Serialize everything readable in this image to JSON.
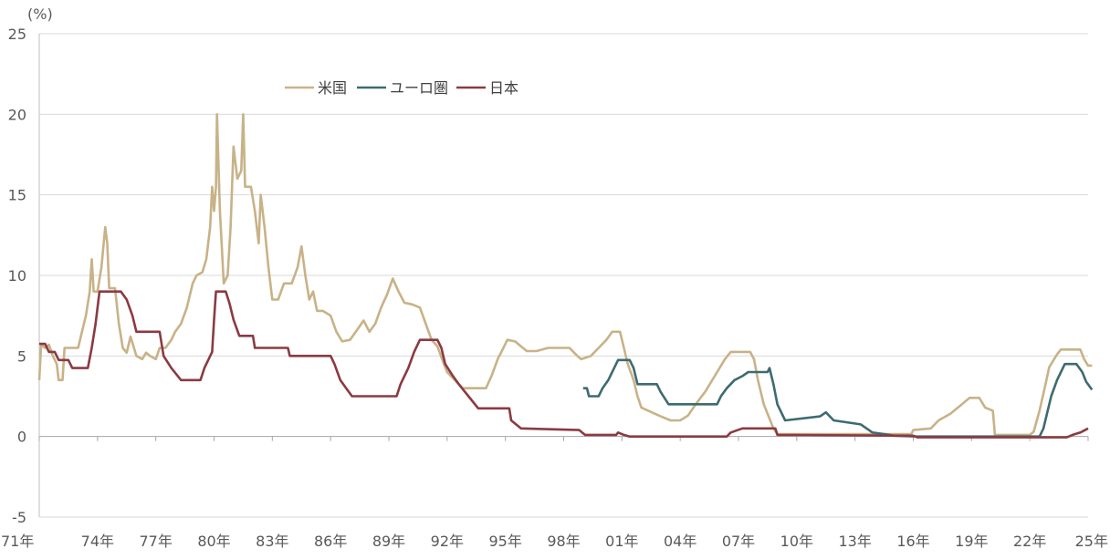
{
  "chart_data": {
    "type": "line",
    "ylabel": "(%)",
    "xlabel": "",
    "ylim": [
      -5,
      25
    ],
    "yticks": [
      -5,
      0,
      5,
      10,
      15,
      20,
      25
    ],
    "xlim": [
      1971,
      2025
    ],
    "xtick_labels": [
      "71年",
      "74年",
      "77年",
      "80年",
      "83年",
      "86年",
      "89年",
      "92年",
      "95年",
      "98年",
      "01年",
      "04年",
      "07年",
      "10年",
      "13年",
      "16年",
      "19年",
      "22年",
      "25年"
    ],
    "grid": "horizontal",
    "legend_position": "top-left",
    "series": [
      {
        "name": "米国",
        "color": "#C8B287",
        "points": [
          [
            1971.0,
            3.5
          ],
          [
            1971.1,
            5.7
          ],
          [
            1971.3,
            5.5
          ],
          [
            1971.5,
            5.7
          ],
          [
            1971.7,
            5.0
          ],
          [
            1971.9,
            4.5
          ],
          [
            1972.0,
            3.5
          ],
          [
            1972.2,
            3.5
          ],
          [
            1972.3,
            5.5
          ],
          [
            1972.7,
            5.5
          ],
          [
            1973.0,
            5.5
          ],
          [
            1973.2,
            6.5
          ],
          [
            1973.4,
            7.5
          ],
          [
            1973.6,
            9.0
          ],
          [
            1973.7,
            11.0
          ],
          [
            1973.8,
            9.0
          ],
          [
            1974.0,
            9.0
          ],
          [
            1974.2,
            10.5
          ],
          [
            1974.4,
            13.0
          ],
          [
            1974.5,
            12.0
          ],
          [
            1974.6,
            9.2
          ],
          [
            1974.9,
            9.2
          ],
          [
            1975.1,
            7.0
          ],
          [
            1975.3,
            5.5
          ],
          [
            1975.5,
            5.2
          ],
          [
            1975.7,
            6.2
          ],
          [
            1976.0,
            5.0
          ],
          [
            1976.3,
            4.8
          ],
          [
            1976.5,
            5.2
          ],
          [
            1976.7,
            5.0
          ],
          [
            1977.0,
            4.8
          ],
          [
            1977.2,
            5.5
          ],
          [
            1977.5,
            5.5
          ],
          [
            1977.8,
            6.0
          ],
          [
            1978.0,
            6.5
          ],
          [
            1978.3,
            7.0
          ],
          [
            1978.6,
            8.0
          ],
          [
            1978.9,
            9.5
          ],
          [
            1979.1,
            10.0
          ],
          [
            1979.4,
            10.2
          ],
          [
            1979.6,
            11.0
          ],
          [
            1979.8,
            13.0
          ],
          [
            1979.9,
            15.5
          ],
          [
            1980.0,
            14.0
          ],
          [
            1980.1,
            15.5
          ],
          [
            1980.15,
            20.0
          ],
          [
            1980.3,
            14.0
          ],
          [
            1980.5,
            9.5
          ],
          [
            1980.7,
            10.0
          ],
          [
            1980.85,
            13.0
          ],
          [
            1981.0,
            18.0
          ],
          [
            1981.2,
            16.0
          ],
          [
            1981.4,
            16.5
          ],
          [
            1981.5,
            20.0
          ],
          [
            1981.6,
            15.5
          ],
          [
            1981.9,
            15.5
          ],
          [
            1982.1,
            14.0
          ],
          [
            1982.3,
            12.0
          ],
          [
            1982.4,
            15.0
          ],
          [
            1982.6,
            13.0
          ],
          [
            1982.8,
            10.5
          ],
          [
            1983.0,
            8.5
          ],
          [
            1983.3,
            8.5
          ],
          [
            1983.6,
            9.5
          ],
          [
            1984.0,
            9.5
          ],
          [
            1984.3,
            10.5
          ],
          [
            1984.5,
            11.8
          ],
          [
            1984.7,
            10.0
          ],
          [
            1984.9,
            8.5
          ],
          [
            1985.1,
            9.0
          ],
          [
            1985.3,
            7.8
          ],
          [
            1985.6,
            7.8
          ],
          [
            1986.0,
            7.5
          ],
          [
            1986.3,
            6.5
          ],
          [
            1986.6,
            5.9
          ],
          [
            1987.0,
            6.0
          ],
          [
            1987.3,
            6.5
          ],
          [
            1987.7,
            7.2
          ],
          [
            1988.0,
            6.5
          ],
          [
            1988.3,
            7.0
          ],
          [
            1988.6,
            8.0
          ],
          [
            1988.9,
            8.8
          ],
          [
            1989.2,
            9.8
          ],
          [
            1989.5,
            9.0
          ],
          [
            1989.8,
            8.3
          ],
          [
            1990.2,
            8.2
          ],
          [
            1990.6,
            8.0
          ],
          [
            1990.9,
            7.0
          ],
          [
            1991.2,
            6.0
          ],
          [
            1991.5,
            5.6
          ],
          [
            1991.8,
            4.6
          ],
          [
            1992.0,
            4.0
          ],
          [
            1992.4,
            3.5
          ],
          [
            1992.8,
            3.0
          ],
          [
            1993.5,
            3.0
          ],
          [
            1994.0,
            3.0
          ],
          [
            1994.3,
            3.8
          ],
          [
            1994.6,
            4.8
          ],
          [
            1994.9,
            5.5
          ],
          [
            1995.1,
            6.0
          ],
          [
            1995.5,
            5.9
          ],
          [
            1995.9,
            5.5
          ],
          [
            1996.1,
            5.3
          ],
          [
            1996.6,
            5.3
          ],
          [
            1997.2,
            5.5
          ],
          [
            1997.8,
            5.5
          ],
          [
            1998.3,
            5.5
          ],
          [
            1998.7,
            5.0
          ],
          [
            1998.9,
            4.8
          ],
          [
            1999.4,
            5.0
          ],
          [
            1999.8,
            5.5
          ],
          [
            2000.2,
            6.0
          ],
          [
            2000.5,
            6.5
          ],
          [
            2000.9,
            6.5
          ],
          [
            2001.1,
            5.5
          ],
          [
            2001.3,
            4.5
          ],
          [
            2001.6,
            3.5
          ],
          [
            2001.8,
            2.5
          ],
          [
            2002.0,
            1.8
          ],
          [
            2002.9,
            1.3
          ],
          [
            2003.5,
            1.0
          ],
          [
            2004.0,
            1.0
          ],
          [
            2004.4,
            1.3
          ],
          [
            2004.8,
            2.0
          ],
          [
            2005.3,
            2.8
          ],
          [
            2005.8,
            3.8
          ],
          [
            2006.3,
            4.8
          ],
          [
            2006.6,
            5.25
          ],
          [
            2007.6,
            5.25
          ],
          [
            2007.8,
            4.8
          ],
          [
            2008.0,
            3.5
          ],
          [
            2008.3,
            2.0
          ],
          [
            2008.8,
            0.5
          ],
          [
            2009.0,
            0.15
          ],
          [
            2015.9,
            0.15
          ],
          [
            2016.0,
            0.4
          ],
          [
            2016.9,
            0.5
          ],
          [
            2017.3,
            1.0
          ],
          [
            2017.9,
            1.4
          ],
          [
            2018.4,
            1.9
          ],
          [
            2018.9,
            2.4
          ],
          [
            2019.4,
            2.4
          ],
          [
            2019.7,
            1.8
          ],
          [
            2020.1,
            1.6
          ],
          [
            2020.2,
            0.1
          ],
          [
            2022.0,
            0.1
          ],
          [
            2022.2,
            0.3
          ],
          [
            2022.5,
            1.6
          ],
          [
            2022.8,
            3.2
          ],
          [
            2023.0,
            4.3
          ],
          [
            2023.4,
            5.1
          ],
          [
            2023.6,
            5.4
          ],
          [
            2024.6,
            5.4
          ],
          [
            2024.8,
            4.8
          ],
          [
            2025.0,
            4.4
          ],
          [
            2025.2,
            4.4
          ]
        ]
      },
      {
        "name": "ユーロ圏",
        "color": "#3D6B70",
        "points": [
          [
            1999.0,
            3.0
          ],
          [
            1999.2,
            3.0
          ],
          [
            1999.3,
            2.5
          ],
          [
            1999.8,
            2.5
          ],
          [
            2000.0,
            3.0
          ],
          [
            2000.3,
            3.5
          ],
          [
            2000.6,
            4.25
          ],
          [
            2000.8,
            4.75
          ],
          [
            2001.4,
            4.75
          ],
          [
            2001.6,
            4.25
          ],
          [
            2001.8,
            3.25
          ],
          [
            2002.8,
            3.25
          ],
          [
            2003.0,
            2.75
          ],
          [
            2003.4,
            2.0
          ],
          [
            2005.9,
            2.0
          ],
          [
            2006.1,
            2.5
          ],
          [
            2006.4,
            3.0
          ],
          [
            2006.8,
            3.5
          ],
          [
            2007.2,
            3.75
          ],
          [
            2007.5,
            4.0
          ],
          [
            2008.5,
            4.0
          ],
          [
            2008.6,
            4.25
          ],
          [
            2008.8,
            3.25
          ],
          [
            2009.0,
            2.0
          ],
          [
            2009.4,
            1.0
          ],
          [
            2011.2,
            1.25
          ],
          [
            2011.5,
            1.5
          ],
          [
            2011.9,
            1.0
          ],
          [
            2013.3,
            0.75
          ],
          [
            2013.9,
            0.25
          ],
          [
            2014.5,
            0.15
          ],
          [
            2015.0,
            0.05
          ],
          [
            2016.2,
            0.0
          ],
          [
            2022.5,
            0.0
          ],
          [
            2022.7,
            0.5
          ],
          [
            2022.9,
            1.5
          ],
          [
            2023.1,
            2.5
          ],
          [
            2023.4,
            3.5
          ],
          [
            2023.8,
            4.5
          ],
          [
            2024.4,
            4.5
          ],
          [
            2024.7,
            4.0
          ],
          [
            2024.9,
            3.4
          ],
          [
            2025.2,
            2.9
          ]
        ]
      },
      {
        "name": "日本",
        "color": "#8B3A42",
        "points": [
          [
            1971.0,
            5.75
          ],
          [
            1971.3,
            5.75
          ],
          [
            1971.5,
            5.25
          ],
          [
            1971.8,
            5.25
          ],
          [
            1972.0,
            4.75
          ],
          [
            1972.5,
            4.75
          ],
          [
            1972.7,
            4.25
          ],
          [
            1973.5,
            4.25
          ],
          [
            1973.7,
            5.5
          ],
          [
            1973.9,
            7.0
          ],
          [
            1974.1,
            9.0
          ],
          [
            1975.2,
            9.0
          ],
          [
            1975.5,
            8.5
          ],
          [
            1975.8,
            7.5
          ],
          [
            1976.0,
            6.5
          ],
          [
            1977.2,
            6.5
          ],
          [
            1977.4,
            5.0
          ],
          [
            1977.8,
            4.25
          ],
          [
            1978.3,
            3.5
          ],
          [
            1979.3,
            3.5
          ],
          [
            1979.5,
            4.25
          ],
          [
            1979.9,
            5.25
          ],
          [
            1980.0,
            7.25
          ],
          [
            1980.1,
            9.0
          ],
          [
            1980.6,
            9.0
          ],
          [
            1980.8,
            8.25
          ],
          [
            1981.0,
            7.25
          ],
          [
            1981.3,
            6.25
          ],
          [
            1982.0,
            6.25
          ],
          [
            1982.1,
            5.5
          ],
          [
            1983.8,
            5.5
          ],
          [
            1983.9,
            5.0
          ],
          [
            1986.0,
            5.0
          ],
          [
            1986.2,
            4.5
          ],
          [
            1986.5,
            3.5
          ],
          [
            1986.8,
            3.0
          ],
          [
            1987.1,
            2.5
          ],
          [
            1989.4,
            2.5
          ],
          [
            1989.6,
            3.25
          ],
          [
            1990.0,
            4.25
          ],
          [
            1990.3,
            5.25
          ],
          [
            1990.6,
            6.0
          ],
          [
            1991.5,
            6.0
          ],
          [
            1991.7,
            5.5
          ],
          [
            1991.9,
            4.5
          ],
          [
            1992.3,
            3.75
          ],
          [
            1992.6,
            3.25
          ],
          [
            1993.1,
            2.5
          ],
          [
            1993.6,
            1.75
          ],
          [
            1995.2,
            1.75
          ],
          [
            1995.3,
            1.0
          ],
          [
            1995.8,
            0.5
          ],
          [
            1998.8,
            0.4
          ],
          [
            1999.1,
            0.1
          ],
          [
            2000.7,
            0.1
          ],
          [
            2000.8,
            0.25
          ],
          [
            2001.1,
            0.1
          ],
          [
            2001.4,
            0.0
          ],
          [
            2006.4,
            0.0
          ],
          [
            2006.6,
            0.25
          ],
          [
            2007.2,
            0.5
          ],
          [
            2008.9,
            0.5
          ],
          [
            2009.0,
            0.1
          ],
          [
            2016.0,
            0.05
          ],
          [
            2016.2,
            -0.05
          ],
          [
            2023.9,
            -0.05
          ],
          [
            2024.2,
            0.1
          ],
          [
            2024.6,
            0.25
          ],
          [
            2025.0,
            0.5
          ]
        ]
      }
    ]
  }
}
